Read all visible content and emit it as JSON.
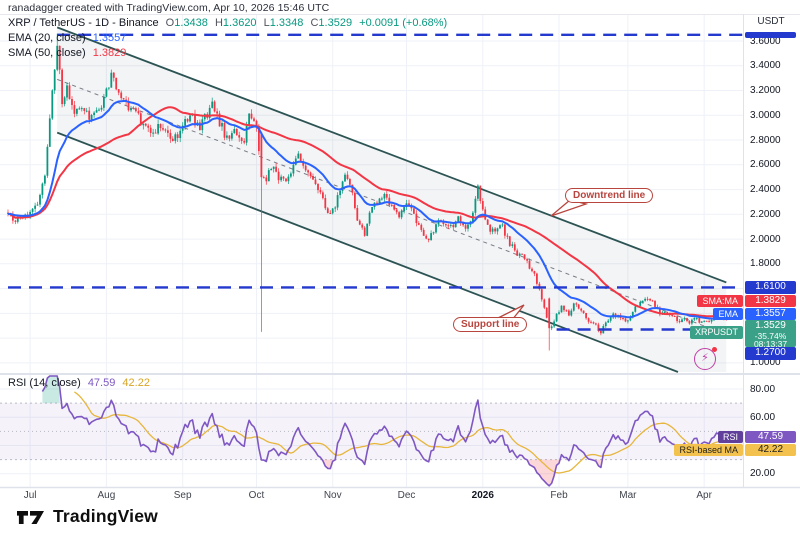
{
  "header": {
    "credit": "ranadagger created with TradingView.com, Apr 10, 2026 15:46 UTC"
  },
  "legend": {
    "symbol_title": "XRP / TetherUS - 1D - Binance",
    "open_label": "O",
    "open": "1.3438",
    "high_label": "H",
    "high": "1.3620",
    "low_label": "L",
    "low": "1.3348",
    "close_label": "C",
    "close": "1.3529",
    "change": "+0.0091 (+0.68%)",
    "ema_label": "EMA (20, close)",
    "ema_value": "1.3557",
    "sma_label": "SMA (50, close)",
    "sma_value": "1.3829"
  },
  "rsi_legend": {
    "label": "RSI (14, close)",
    "value": "47.59",
    "ma_value": "42.22"
  },
  "annotations": {
    "downtrend": "Downtrend line",
    "support": "Support line"
  },
  "price_axis": {
    "currency": "USDT",
    "ticks": [
      {
        "label": "3.6000",
        "p": 3.6
      },
      {
        "label": "3.4000",
        "p": 3.4
      },
      {
        "label": "3.2000",
        "p": 3.2
      },
      {
        "label": "3.0000",
        "p": 3.0
      },
      {
        "label": "2.8000",
        "p": 2.8
      },
      {
        "label": "2.6000",
        "p": 2.6
      },
      {
        "label": "2.4000",
        "p": 2.4
      },
      {
        "label": "2.2000",
        "p": 2.2
      },
      {
        "label": "2.0000",
        "p": 2.0
      },
      {
        "label": "1.8000",
        "p": 1.8
      },
      {
        "label": "1.0000",
        "p": 1.0
      }
    ],
    "line_labels": {
      "resistance": "1.6100",
      "sma_tag": "SMA:MA",
      "sma_value": "1.3829",
      "ema_tag": "EMA",
      "ema_value": "1.3557",
      "symbol_tag": "XRPUSDT",
      "last_price": "1.3529",
      "change_pct": "-35.74%",
      "countdown": "08:13:37",
      "support": "1.2700"
    }
  },
  "rsi_axis": {
    "ticks": [
      {
        "label": "80.00",
        "v": 80
      },
      {
        "label": "60.00",
        "v": 60
      },
      {
        "label": "20.00",
        "v": 20
      }
    ],
    "rsi_tag": "RSI",
    "rsi_value": "47.59",
    "ma_tag": "RSI-based MA",
    "ma_value": "42.22"
  },
  "time_axis": {
    "ticks": [
      {
        "label": "Jul",
        "i": 9
      },
      {
        "label": "Aug",
        "i": 40
      },
      {
        "label": "Sep",
        "i": 71
      },
      {
        "label": "Oct",
        "i": 101
      },
      {
        "label": "Nov",
        "i": 132
      },
      {
        "label": "Dec",
        "i": 162
      },
      {
        "label": "2026",
        "i": 193,
        "bold": true
      },
      {
        "label": "Feb",
        "i": 224
      },
      {
        "label": "Mar",
        "i": 252
      },
      {
        "label": "Apr",
        "i": 283
      }
    ]
  },
  "footer": {
    "brand": "TradingView"
  },
  "colors": {
    "up": "#089981",
    "down": "#F23645",
    "ema": "#2962FF",
    "sma": "#F23645",
    "level_blue": "#2439CE",
    "label_blue": "#2962FF",
    "label_red": "#F23645",
    "label_teal": "#3AA188",
    "rsi": "#7E57C2",
    "rsi_ma": "#E7B63C",
    "channel": "#2D5454",
    "grid": "#eef1f7"
  },
  "chart_data": {
    "type": "candlestick",
    "symbol": "XRP/USDT",
    "exchange": "Binance",
    "interval": "1D",
    "title": "XRP / TetherUS - 1D - Binance",
    "last_ohlc": {
      "open": 1.3438,
      "high": 1.362,
      "low": 1.3348,
      "close": 1.3529,
      "change": 0.0091,
      "change_pct": 0.68
    },
    "y_axis": {
      "currency": "USDT",
      "min": 1.0,
      "max": 3.7,
      "tick_step": 0.2
    },
    "x_range": {
      "start": "2025-06-22",
      "end": "2026-04-10",
      "bars": 293
    },
    "price_path": [
      [
        0,
        2.18
      ],
      [
        5,
        2.15
      ],
      [
        9,
        2.22
      ],
      [
        12,
        2.28
      ],
      [
        15,
        2.5
      ],
      [
        17,
        3.0
      ],
      [
        19,
        3.4
      ],
      [
        20,
        3.6
      ],
      [
        21,
        3.34
      ],
      [
        22,
        3.1
      ],
      [
        24,
        3.2
      ],
      [
        27,
        3.02
      ],
      [
        30,
        3.1
      ],
      [
        33,
        2.95
      ],
      [
        37,
        3.05
      ],
      [
        42,
        3.3
      ],
      [
        46,
        3.15
      ],
      [
        50,
        3.05
      ],
      [
        54,
        2.95
      ],
      [
        58,
        2.85
      ],
      [
        62,
        2.92
      ],
      [
        66,
        2.8
      ],
      [
        70,
        2.86
      ],
      [
        74,
        3.0
      ],
      [
        78,
        2.9
      ],
      [
        83,
        3.1
      ],
      [
        86,
        2.95
      ],
      [
        89,
        2.8
      ],
      [
        92,
        2.86
      ],
      [
        96,
        2.8
      ],
      [
        98,
        3.0
      ],
      [
        101,
        2.9
      ],
      [
        103,
        2.5
      ],
      [
        105,
        2.45
      ],
      [
        107,
        2.6
      ],
      [
        110,
        2.5
      ],
      [
        113,
        2.46
      ],
      [
        115,
        2.55
      ],
      [
        118,
        2.66
      ],
      [
        121,
        2.56
      ],
      [
        124,
        2.5
      ],
      [
        127,
        2.35
      ],
      [
        130,
        2.2
      ],
      [
        133,
        2.26
      ],
      [
        135,
        2.4
      ],
      [
        137,
        2.5
      ],
      [
        140,
        2.36
      ],
      [
        142,
        2.16
      ],
      [
        145,
        2.05
      ],
      [
        147,
        2.2
      ],
      [
        150,
        2.3
      ],
      [
        153,
        2.36
      ],
      [
        156,
        2.26
      ],
      [
        159,
        2.2
      ],
      [
        163,
        2.3
      ],
      [
        165,
        2.2
      ],
      [
        168,
        2.06
      ],
      [
        171,
        1.98
      ],
      [
        174,
        2.1
      ],
      [
        176,
        2.15
      ],
      [
        180,
        2.1
      ],
      [
        183,
        2.16
      ],
      [
        186,
        2.1
      ],
      [
        189,
        2.2
      ],
      [
        191,
        2.4
      ],
      [
        193,
        2.26
      ],
      [
        195,
        2.1
      ],
      [
        198,
        2.06
      ],
      [
        201,
        2.1
      ],
      [
        203,
        2.0
      ],
      [
        206,
        1.9
      ],
      [
        209,
        1.86
      ],
      [
        211,
        1.8
      ],
      [
        214,
        1.7
      ],
      [
        217,
        1.52
      ],
      [
        220,
        1.28
      ],
      [
        221,
        1.31
      ],
      [
        223,
        1.38
      ],
      [
        225,
        1.45
      ],
      [
        228,
        1.4
      ],
      [
        230,
        1.48
      ],
      [
        233,
        1.42
      ],
      [
        236,
        1.35
      ],
      [
        239,
        1.3
      ],
      [
        241,
        1.24
      ],
      [
        243,
        1.33
      ],
      [
        246,
        1.4
      ],
      [
        248,
        1.37
      ],
      [
        251,
        1.33
      ],
      [
        253,
        1.37
      ],
      [
        255,
        1.44
      ],
      [
        258,
        1.5
      ],
      [
        260,
        1.53
      ],
      [
        263,
        1.46
      ],
      [
        265,
        1.4
      ],
      [
        267,
        1.43
      ],
      [
        270,
        1.38
      ],
      [
        272,
        1.34
      ],
      [
        275,
        1.36
      ],
      [
        277,
        1.33
      ],
      [
        280,
        1.35
      ],
      [
        282,
        1.32
      ],
      [
        285,
        1.34
      ],
      [
        287,
        1.36
      ],
      [
        289,
        1.34
      ],
      [
        292,
        1.3529
      ]
    ],
    "special_bars": [
      {
        "i": 20,
        "high": 3.66
      },
      {
        "i": 103,
        "open": 2.86,
        "close": 2.5,
        "low": 1.25
      },
      {
        "i": 220,
        "open": 1.52,
        "close": 1.28,
        "low": 1.1
      }
    ],
    "levels": [
      {
        "price": 3.65,
        "from_bar": 20,
        "style": "dashed-blue",
        "label": ""
      },
      {
        "price": 1.61,
        "from_bar": 0,
        "style": "dashed-blue",
        "label": "1.6100"
      },
      {
        "price": 1.27,
        "from_bar": 223,
        "style": "dashed-blue",
        "label": "1.2700"
      }
    ],
    "channel": {
      "upper": [
        [
          20,
          3.71
        ],
        [
          292,
          1.65
        ]
      ],
      "lower": [
        [
          20,
          2.86
        ],
        [
          281,
          0.86
        ]
      ],
      "median": [
        [
          20,
          3.29
        ],
        [
          292,
          1.23
        ]
      ],
      "median_dashed": true
    },
    "indicators": [
      {
        "name": "EMA",
        "period": 20,
        "last": 1.3557
      },
      {
        "name": "SMA",
        "period": 50,
        "last": 1.3829
      },
      {
        "name": "RSI",
        "period": 14,
        "last": 47.59,
        "overbought": 70,
        "oversold": 30,
        "middle": 50
      },
      {
        "name": "RSI-based MA",
        "period": 14,
        "last": 42.22
      }
    ],
    "grid": true,
    "legend_position": "top-left"
  }
}
